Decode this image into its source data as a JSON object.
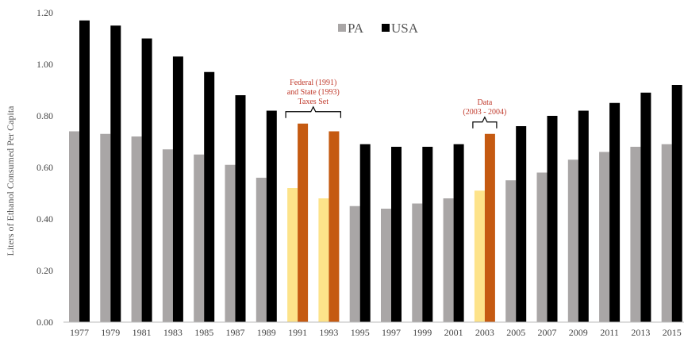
{
  "chart_data": {
    "type": "bar",
    "ylabel": "Liters of Ethanol Consumed Per Capita",
    "ylim": [
      0,
      1.2
    ],
    "yticks": [
      "0.00",
      "0.20",
      "0.40",
      "0.60",
      "0.80",
      "1.00",
      "1.20"
    ],
    "grid": false,
    "legend_position": "top-center",
    "categories": [
      "1977",
      "1979",
      "1981",
      "1983",
      "1985",
      "1987",
      "1989",
      "1991",
      "1993",
      "1995",
      "1997",
      "1999",
      "2001",
      "2003",
      "2005",
      "2007",
      "2009",
      "2011",
      "2013",
      "2015"
    ],
    "series": [
      {
        "name": "PA",
        "color": "#a9a6a6",
        "values": [
          0.74,
          0.73,
          0.72,
          0.67,
          0.65,
          0.61,
          0.56,
          0.52,
          0.48,
          0.45,
          0.44,
          0.46,
          0.48,
          0.51,
          0.55,
          0.58,
          0.63,
          0.66,
          0.68,
          0.69
        ]
      },
      {
        "name": "USA",
        "color": "#000000",
        "values": [
          1.17,
          1.15,
          1.1,
          1.03,
          0.97,
          0.88,
          0.82,
          0.77,
          0.74,
          0.69,
          0.68,
          0.68,
          0.69,
          0.73,
          0.76,
          0.8,
          0.82,
          0.85,
          0.89,
          0.92
        ]
      }
    ],
    "highlights": [
      {
        "category": "1991",
        "series": "PA",
        "color": "#fde38a"
      },
      {
        "category": "1991",
        "series": "USA",
        "color": "#c55a11"
      },
      {
        "category": "1993",
        "series": "PA",
        "color": "#fde38a"
      },
      {
        "category": "1993",
        "series": "USA",
        "color": "#c55a11"
      },
      {
        "category": "2003",
        "series": "PA",
        "color": "#fde38a"
      },
      {
        "category": "2003",
        "series": "USA",
        "color": "#c55a11"
      }
    ],
    "annotations": [
      {
        "id": "taxes",
        "lines": [
          "Federal (1991)",
          "and State (1993)",
          "Taxes Set"
        ],
        "span": [
          "1991",
          "1993"
        ],
        "color": "#c0392b"
      },
      {
        "id": "data",
        "lines": [
          "Data",
          "(2003 - 2004)"
        ],
        "span": [
          "2003",
          "2003"
        ],
        "color": "#c0392b"
      }
    ]
  }
}
